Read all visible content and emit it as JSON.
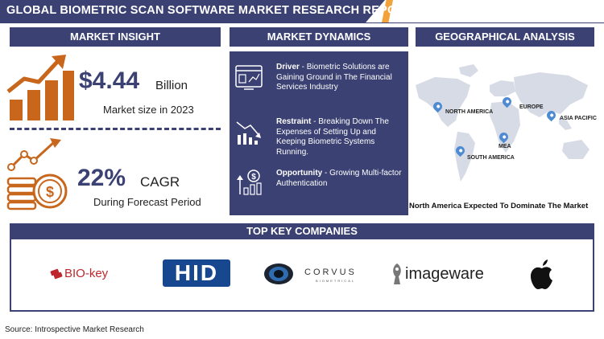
{
  "report_title": "GLOBAL BIOMETRIC SCAN SOFTWARE MARKET RESEARCH REPORT",
  "sections": {
    "market_insight": "MARKET INSIGHT",
    "market_dynamics": "MARKET DYNAMICS",
    "geographical_analysis": "GEOGRAPHICAL ANALYSIS",
    "top_key_companies": "TOP KEY COMPANIES"
  },
  "market_insight": {
    "size_value": "$4.44",
    "size_unit": "Billion",
    "size_caption": "Market size in 2023",
    "cagr_value": "22%",
    "cagr_label": "CAGR",
    "cagr_caption": "During Forecast Period"
  },
  "market_dynamics": {
    "driver_label": "Driver",
    "driver_text": " - Biometric Solutions are Gaining Ground in The Financial Services Industry",
    "restraint_label": "Restraint",
    "restraint_text": " - Breaking Down The Expenses of Setting Up and Keeping Biometric Systems Running.",
    "opportunity_label": "Opportunity",
    "opportunity_text": " - Growing Multi-factor Authentication"
  },
  "geographical_analysis": {
    "regions": [
      "NORTH AMERICA",
      "EUROPE",
      "ASIA PACIFIC",
      "MEA",
      "SOUTH AMERICA"
    ],
    "caption": "North America Expected To Dominate The Market"
  },
  "companies": {
    "bio_key": "BIO-key",
    "hid": "HID",
    "corvus": "CORVUS",
    "corvus_sub": "BIOMETRICAL",
    "imageware": "imageware",
    "apple": "Apple"
  },
  "source": "Source: Introspective Market Research",
  "colors": {
    "navy": "#3b4173",
    "orange": "#c8661c",
    "accent": "#f3a23a",
    "map": "#d7dbe6",
    "pin": "#4f8bd1"
  }
}
